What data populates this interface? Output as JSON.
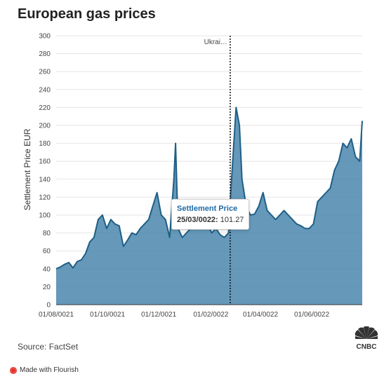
{
  "title": "European gas prices",
  "source": "Source: FactSet",
  "made_with": "Made with Flourish",
  "logo_text": "CNBC",
  "tooltip": {
    "title": "Settlement Price",
    "date": "25/03/0022:",
    "value": "101.27"
  },
  "colors": {
    "fill": "#4a86ad",
    "line": "#1f5f86",
    "grid": "#e6e6e6",
    "tooltip_title": "#1f6aa5"
  },
  "chart_data": {
    "type": "area",
    "title": "European gas prices",
    "ylabel": "Settlement Price EUR",
    "xlabel": "",
    "ylim": [
      0,
      300
    ],
    "yticks": [
      0,
      20,
      40,
      60,
      80,
      100,
      120,
      140,
      160,
      180,
      200,
      220,
      240,
      260,
      280,
      300
    ],
    "x_tick_labels": [
      "01/08/0021",
      "01/10/0021",
      "01/12/0021",
      "01/02/0022",
      "01/04/0022",
      "01/06/0022"
    ],
    "grid": true,
    "annotation": {
      "label": "Ukrai…",
      "x": "24/02/0022",
      "style": "dotted vertical line"
    },
    "series": [
      {
        "name": "Settlement Price",
        "x": [
          "01/08/0021",
          "06/08/0021",
          "11/08/0021",
          "16/08/0021",
          "21/08/0021",
          "26/08/0021",
          "31/08/0021",
          "05/09/0021",
          "10/09/0021",
          "15/09/0021",
          "20/09/0021",
          "25/09/0021",
          "30/09/0021",
          "05/10/0021",
          "10/10/0021",
          "15/10/0021",
          "20/10/0021",
          "25/10/0021",
          "30/10/0021",
          "04/11/0021",
          "09/11/0021",
          "14/11/0021",
          "19/11/0021",
          "24/11/0021",
          "29/11/0021",
          "04/12/0021",
          "09/12/0021",
          "14/12/0021",
          "19/12/0021",
          "21/12/0021",
          "24/12/0021",
          "29/12/0021",
          "03/01/0022",
          "08/01/0022",
          "13/01/0022",
          "18/01/0022",
          "23/01/0022",
          "28/01/0022",
          "02/02/0022",
          "07/02/0022",
          "12/02/0022",
          "17/02/0022",
          "22/02/0022",
          "25/02/0022",
          "03/03/0022",
          "07/03/0022",
          "10/03/0022",
          "15/03/0022",
          "20/03/0022",
          "25/03/0022",
          "30/03/0022",
          "04/04/0022",
          "09/04/0022",
          "14/04/0022",
          "19/04/0022",
          "24/04/0022",
          "29/04/0022",
          "04/05/0022",
          "09/05/0022",
          "14/05/0022",
          "19/05/0022",
          "24/05/0022",
          "29/05/0022",
          "03/06/0022",
          "08/06/0022",
          "13/06/0022",
          "18/06/0022",
          "23/06/0022",
          "28/06/0022",
          "03/07/0022",
          "08/07/0022",
          "13/07/0022",
          "18/07/0022",
          "23/07/0022",
          "28/07/0022",
          "31/07/0022"
        ],
        "values": [
          40,
          42,
          45,
          47,
          41,
          48,
          50,
          57,
          70,
          75,
          95,
          100,
          85,
          95,
          90,
          88,
          65,
          72,
          80,
          78,
          85,
          90,
          95,
          110,
          125,
          100,
          95,
          75,
          140,
          180,
          85,
          75,
          80,
          85,
          90,
          85,
          88,
          90,
          80,
          85,
          78,
          75,
          80,
          130,
          220,
          200,
          140,
          110,
          100,
          101,
          110,
          125,
          105,
          100,
          95,
          100,
          105,
          100,
          95,
          90,
          88,
          85,
          85,
          90,
          115,
          120,
          125,
          130,
          150,
          160,
          180,
          175,
          185,
          165,
          160,
          205
        ]
      }
    ]
  }
}
